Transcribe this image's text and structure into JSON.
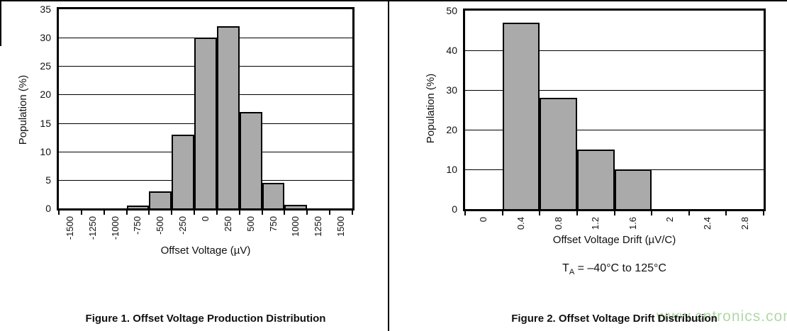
{
  "page": {
    "watermark": "www.cntronics.com"
  },
  "figures": [
    {
      "caption": "Figure 1. Offset Voltage Production Distribution"
    },
    {
      "caption": "Figure 2. Offset Voltage Drift Distribution",
      "cond_t": "T",
      "cond_sub": "A",
      "cond_rest": " = –40°C to 125°C"
    }
  ],
  "chart_data": [
    {
      "type": "bar",
      "title": "",
      "xlabel": "Offset Voltage (µV)",
      "ylabel": "Population (%)",
      "categories": [
        "-1500",
        "-1250",
        "-1000",
        "-750",
        "-500",
        "-250",
        "0",
        "250",
        "500",
        "750",
        "1000",
        "1250",
        "1500"
      ],
      "values": [
        0,
        0,
        0,
        0.5,
        3,
        13,
        30,
        32,
        17,
        4.5,
        0.6,
        0,
        0
      ],
      "ylim": [
        0,
        35
      ],
      "ytick_step": 5,
      "grid": true,
      "legend": null,
      "bar_color": "#aaaaaa",
      "axis_color": "#000000"
    },
    {
      "type": "bar",
      "title": "",
      "xlabel": "Offset Voltage Drift (µV/C)",
      "ylabel": "Population (%)",
      "categories": [
        "0",
        "0.4",
        "0.8",
        "1.2",
        "1.6",
        "2",
        "2.4",
        "2.8"
      ],
      "values": [
        0,
        47,
        28,
        15,
        10,
        0,
        0,
        0
      ],
      "ylim": [
        0,
        50
      ],
      "ytick_step": 10,
      "grid": true,
      "legend": null,
      "bar_color": "#aaaaaa",
      "axis_color": "#000000"
    }
  ]
}
